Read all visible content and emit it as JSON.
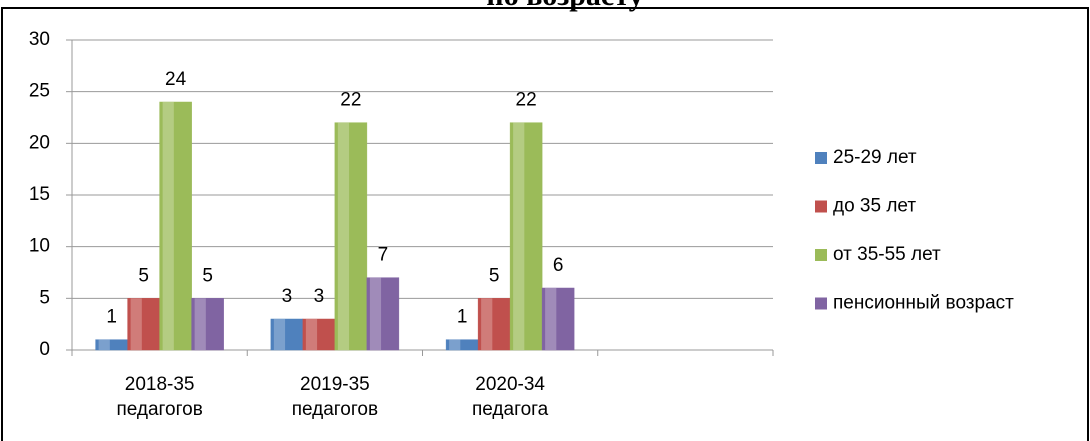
{
  "chart_data": {
    "type": "bar",
    "title": "по возрасту",
    "categories": [
      "2018-35 педагогов",
      "2019-35 педагогов",
      "2020-34 педагога",
      null
    ],
    "series": [
      {
        "name": "25-29 лет",
        "color": "#4f81bd",
        "values": [
          1,
          3,
          1,
          null
        ]
      },
      {
        "name": "до 35 лет",
        "color": "#c0504d",
        "values": [
          5,
          3,
          5,
          null
        ]
      },
      {
        "name": "от 35-55 лет",
        "color": "#9bbb59",
        "values": [
          24,
          22,
          22,
          null
        ]
      },
      {
        "name": "пенсионный возраст",
        "color": "#8064a2",
        "values": [
          5,
          7,
          6,
          null
        ]
      }
    ],
    "ylim": [
      0,
      30
    ],
    "yticks": [
      0,
      5,
      10,
      15,
      20,
      25,
      30
    ],
    "grid": true,
    "legend": "right"
  }
}
